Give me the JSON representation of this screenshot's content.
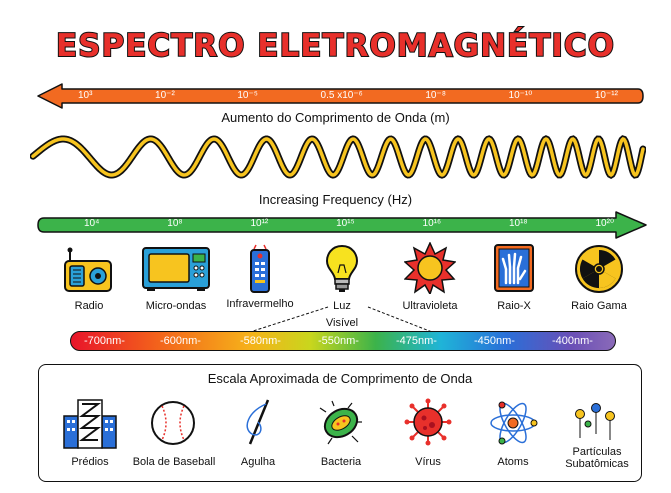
{
  "title": "ESPECTRO ELETROMAGNÉTICO",
  "wavelength_axis": {
    "label": "Aumento do Comprimento de Onda (m)",
    "ticks": [
      "10³",
      "10⁻²",
      "10⁻⁵",
      "0.5 x10⁻⁶",
      "10⁻⁸",
      "10⁻¹⁰",
      "10⁻¹²"
    ],
    "color": "#f26a21"
  },
  "frequency_axis": {
    "label": "Increasing Frequency (Hz)",
    "ticks": [
      "10⁴",
      "10⁸",
      "10¹²",
      "10¹⁵",
      "10¹⁶",
      "10¹⁸",
      "10²⁰"
    ],
    "color": "#3cb34a"
  },
  "wave_colors": {
    "outline": "#111111",
    "fill": "#f7c41f"
  },
  "sources": [
    {
      "label": "Radio",
      "icon": "radio-icon"
    },
    {
      "label": "Micro-ondas",
      "icon": "microwave-icon"
    },
    {
      "label": "Infravermelho",
      "icon": "remote-control-icon"
    },
    {
      "label": "Luz",
      "icon": "light-bulb-icon"
    },
    {
      "label": "Ultravioleta",
      "icon": "sun-icon"
    },
    {
      "label": "Raio-X",
      "icon": "xray-hand-icon"
    },
    {
      "label": "Raio Gama",
      "icon": "radiation-icon"
    }
  ],
  "visible_label": "Visível",
  "visible_scale": [
    "-700nm-",
    "-600nm-",
    "-580nm-",
    "-550nm-",
    "-475nm-",
    "-450nm-",
    "-400nm-"
  ],
  "scale_title": "Escala Aproximada de Comprimento de Onda",
  "scale_items": [
    {
      "label": "Prédios",
      "icon": "building-icon"
    },
    {
      "label": "Bola de Baseball",
      "icon": "baseball-icon"
    },
    {
      "label": "Agulha",
      "icon": "needle-icon"
    },
    {
      "label": "Bacteria",
      "icon": "bacteria-icon"
    },
    {
      "label": "Vírus",
      "icon": "virus-icon"
    },
    {
      "label": "Atoms",
      "icon": "atom-icon"
    },
    {
      "label": "Partículas Subatômicas",
      "icon": "subatomic-particles-icon"
    }
  ]
}
